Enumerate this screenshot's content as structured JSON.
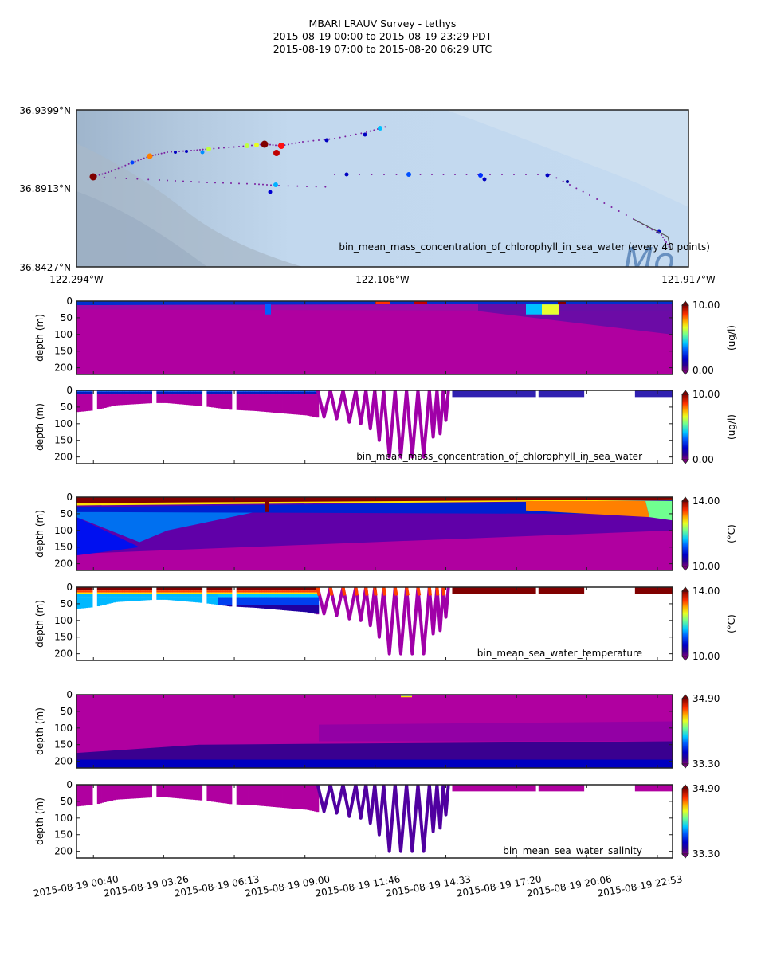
{
  "header": {
    "title": "MBARI LRAUV Survey - tethys",
    "pdt_range": "2015-08-19 00:00  to  2015-08-19 23:29 PDT",
    "utc_range": "2015-08-19 07:00  to  2015-08-20 06:29 UTC"
  },
  "map": {
    "lat_ticks": [
      "36.9399°N",
      "36.8913°N",
      "36.8427°N"
    ],
    "lon_ticks": [
      "122.294°W",
      "122.106°W",
      "121.917°W"
    ],
    "lat_range": [
      36.8427,
      36.9399
    ],
    "lon_range": [
      -122.294,
      -121.917
    ],
    "annotation": "bin_mean_mass_concentration_of_chlorophyll_in_sea_water (every 40 points)",
    "background_label": "Mo"
  },
  "colors": {
    "frame": "#222222",
    "map_water": "#c2d8ee",
    "map_land": "#8ea4bc",
    "track": "#7a1fa0",
    "pink_low": "#b000a0"
  },
  "chart_data": [
    {
      "type": "heatmap",
      "name": "chlorophyll-interpolated",
      "ylabel": "depth (m)",
      "yticks": [
        "0",
        "50",
        "100",
        "150",
        "200"
      ],
      "ylim": [
        220,
        0
      ],
      "colorbar": {
        "min_label": "0.00",
        "max_label": "10.00",
        "units": "(ug/l)",
        "range": [
          0,
          10
        ]
      },
      "annotation": ""
    },
    {
      "type": "scatter",
      "name": "chlorophyll-profiles",
      "ylabel": "depth (m)",
      "yticks": [
        "0",
        "50",
        "100",
        "150",
        "200"
      ],
      "ylim": [
        220,
        0
      ],
      "colorbar": {
        "min_label": "0.00",
        "max_label": "10.00",
        "units": "(ug/l)",
        "range": [
          0,
          10
        ]
      },
      "annotation": "bin_mean_mass_concentration_of_chlorophyll_in_sea_water"
    },
    {
      "type": "heatmap",
      "name": "temperature-interpolated",
      "ylabel": "depth (m)",
      "yticks": [
        "0",
        "50",
        "100",
        "150",
        "200"
      ],
      "ylim": [
        220,
        0
      ],
      "colorbar": {
        "min_label": "10.00",
        "max_label": "14.00",
        "units": "(°C)",
        "range": [
          10,
          14
        ]
      },
      "annotation": ""
    },
    {
      "type": "scatter",
      "name": "temperature-profiles",
      "ylabel": "depth (m)",
      "yticks": [
        "0",
        "50",
        "100",
        "150",
        "200"
      ],
      "ylim": [
        220,
        0
      ],
      "colorbar": {
        "min_label": "10.00",
        "max_label": "14.00",
        "units": "(°C)",
        "range": [
          10,
          14
        ]
      },
      "annotation": "bin_mean_sea_water_temperature"
    },
    {
      "type": "heatmap",
      "name": "salinity-interpolated",
      "ylabel": "depth (m)",
      "yticks": [
        "0",
        "50",
        "100",
        "150",
        "200"
      ],
      "ylim": [
        220,
        0
      ],
      "colorbar": {
        "min_label": "33.30",
        "max_label": "34.90",
        "units": "",
        "range": [
          33.3,
          34.9
        ]
      },
      "annotation": ""
    },
    {
      "type": "scatter",
      "name": "salinity-profiles",
      "ylabel": "depth (m)",
      "yticks": [
        "0",
        "50",
        "100",
        "150",
        "200"
      ],
      "ylim": [
        220,
        0
      ],
      "colorbar": {
        "min_label": "33.30",
        "max_label": "34.90",
        "units": "",
        "range": [
          33.3,
          34.9
        ]
      },
      "annotation": "bin_mean_sea_water_salinity"
    }
  ],
  "time_axis": {
    "ticks": [
      "2015-08-19 00:40",
      "2015-08-19 03:26",
      "2015-08-19 06:13",
      "2015-08-19 09:00",
      "2015-08-19 11:46",
      "2015-08-19 14:33",
      "2015-08-19 17:20",
      "2015-08-19 20:06",
      "2015-08-19 22:53"
    ],
    "range_hours": [
      0,
      23.48
    ],
    "tick_hours": [
      0.667,
      3.433,
      6.217,
      9.0,
      11.767,
      14.55,
      17.333,
      20.1,
      22.883
    ]
  },
  "profile_bottoms": {
    "hours": [
      0.0,
      0.67,
      1.5,
      3.0,
      3.5,
      5.0,
      6.0,
      7.0,
      8.5,
      9.0,
      10.0,
      11.0,
      11.5,
      12.0,
      12.5,
      13.0,
      13.5,
      14.0,
      14.5
    ],
    "depth_m": [
      65,
      60,
      45,
      38,
      38,
      48,
      58,
      62,
      72,
      75,
      90,
      100,
      150,
      200,
      200,
      200,
      200,
      140,
      90
    ]
  },
  "surface_segments_hours": [
    [
      14.8,
      18.1
    ],
    [
      18.2,
      20.0
    ],
    [
      22.0,
      23.48
    ]
  ]
}
